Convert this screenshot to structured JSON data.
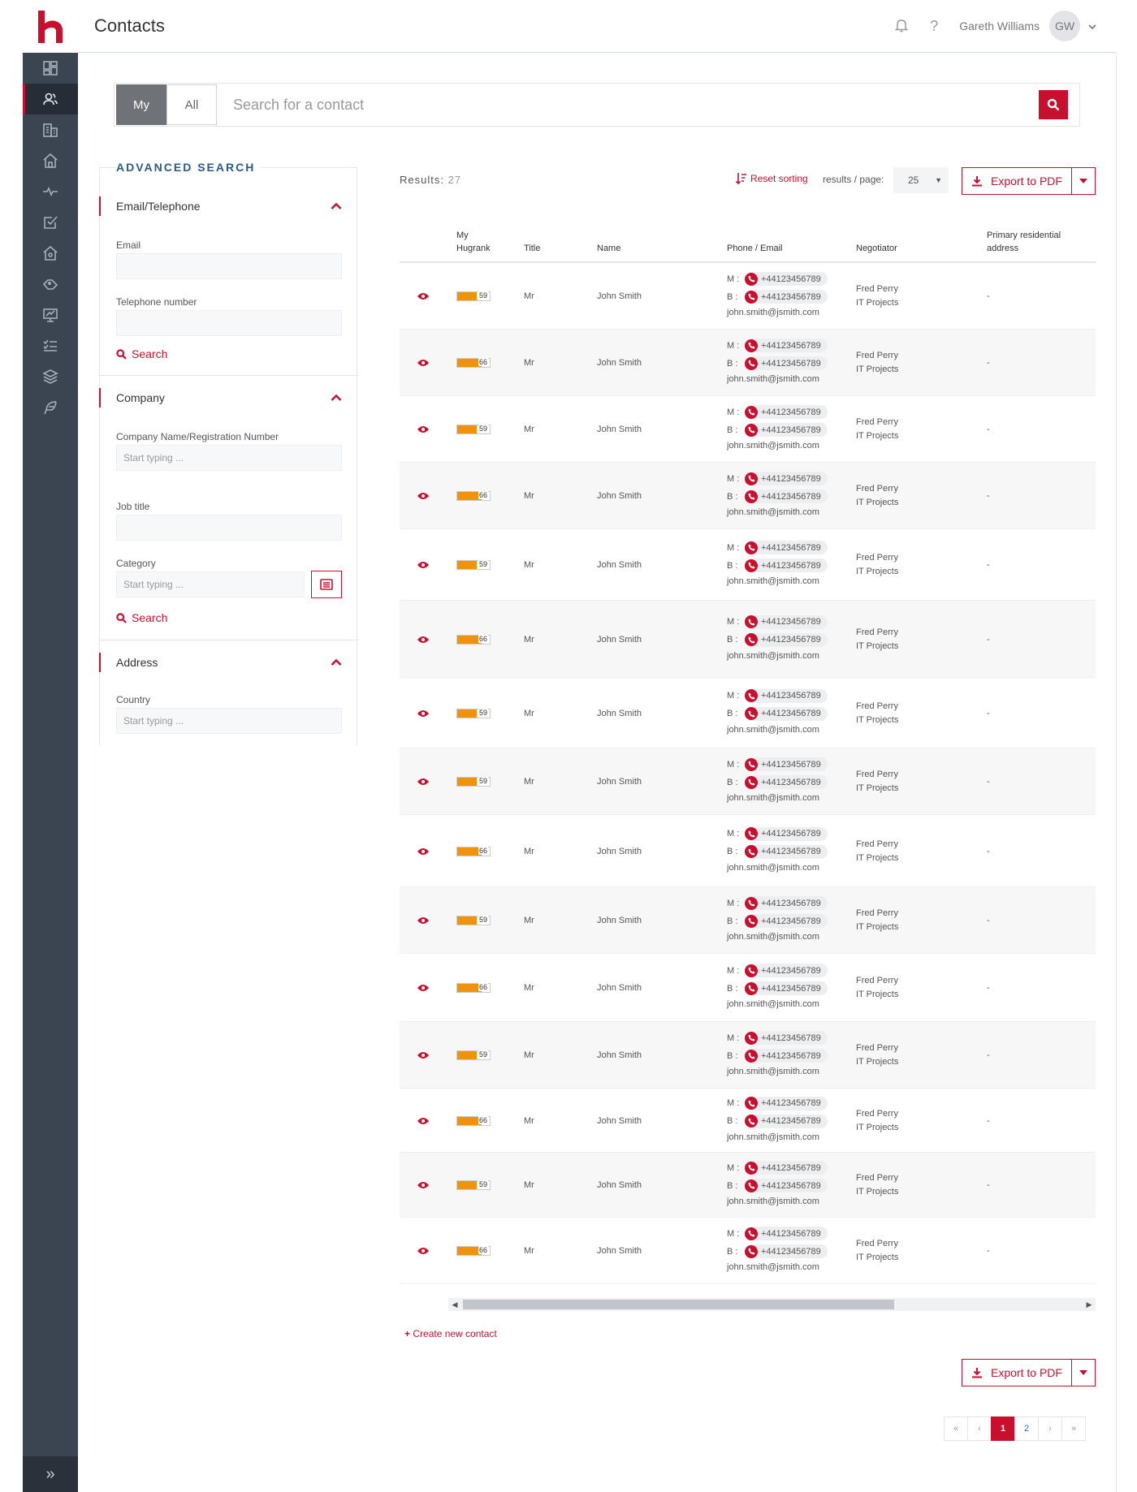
{
  "header": {
    "title": "Contacts",
    "user_name": "Gareth Williams",
    "avatar_initials": "GW",
    "help": "?"
  },
  "sidebar": {
    "items": [
      {
        "name": "dashboard-icon"
      },
      {
        "name": "contacts-icon",
        "active": true
      },
      {
        "name": "companies-icon"
      },
      {
        "name": "properties-icon"
      },
      {
        "name": "activity-icon"
      },
      {
        "name": "tasks-icon"
      },
      {
        "name": "agency-icon"
      },
      {
        "name": "deals-icon"
      },
      {
        "name": "presentation-icon"
      },
      {
        "name": "checklist-icon"
      },
      {
        "name": "layers-icon"
      },
      {
        "name": "feather-icon"
      }
    ],
    "expand": "»"
  },
  "search": {
    "toggle_my": "My",
    "toggle_all": "All",
    "placeholder": "Search for a contact"
  },
  "advanced": {
    "title": "ADVANCED SEARCH",
    "sections": {
      "email_tel": {
        "label": "Email/Telephone",
        "email_label": "Email",
        "email_value": "",
        "tel_label": "Telephone number",
        "tel_value": "",
        "search": "Search"
      },
      "company": {
        "label": "Company",
        "name_label": "Company Name/Registration Number",
        "name_placeholder": "Start typing ...",
        "job_label": "Job title",
        "job_value": "",
        "category_label": "Category",
        "category_placeholder": "Start typing ...",
        "search": "Search"
      },
      "address": {
        "label": "Address",
        "country_label": "Country",
        "country_placeholder": "Start typing ..."
      }
    }
  },
  "results": {
    "label": "Results:",
    "count": "27",
    "reset_sorting": "Reset sorting",
    "per_page_label": "results / page:",
    "per_page_value": "25",
    "export_label": "Export to PDF",
    "create_new": "Create new contact"
  },
  "table": {
    "headers": {
      "hugrank": [
        "My",
        "Hugrank"
      ],
      "title": "Title",
      "name": "Name",
      "phone_email": "Phone / Email",
      "negotiator": "Negotiator",
      "address": [
        "Primary residential",
        "address"
      ]
    },
    "rows": [
      {
        "rank": 59,
        "title": "Mr",
        "name": "John Smith",
        "m_prefix": "M :",
        "mobile": "+44123456789",
        "b_prefix": "B :",
        "business": "+44123456789",
        "email": "john.smith@jsmith.com",
        "negotiator": "Fred Perry",
        "team": "IT Projects",
        "address": "-"
      },
      {
        "rank": 66,
        "title": "Mr",
        "name": "John Smith",
        "m_prefix": "M :",
        "mobile": "+44123456789",
        "b_prefix": "B :",
        "business": "+44123456789",
        "email": "john.smith@jsmith.com",
        "negotiator": "Fred Perry",
        "team": "IT Projects",
        "address": "-"
      },
      {
        "rank": 59,
        "title": "Mr",
        "name": "John Smith",
        "m_prefix": "M :",
        "mobile": "+44123456789",
        "b_prefix": "B :",
        "business": "+44123456789",
        "email": "john.smith@jsmith.com",
        "negotiator": "Fred Perry",
        "team": "IT Projects",
        "address": "-"
      },
      {
        "rank": 66,
        "title": "Mr",
        "name": "John Smith",
        "m_prefix": "M :",
        "mobile": "+44123456789",
        "b_prefix": "B :",
        "business": "+44123456789",
        "email": "john.smith@jsmith.com",
        "negotiator": "Fred Perry",
        "team": "IT Projects",
        "address": "-"
      },
      {
        "rank": 59,
        "title": "Mr",
        "name": "John Smith",
        "m_prefix": "M :",
        "mobile": "+44123456789",
        "b_prefix": "B :",
        "business": "+44123456789",
        "email": "john.smith@jsmith.com",
        "negotiator": "Fred Perry",
        "team": "IT Projects",
        "address": "-"
      },
      {
        "rank": 66,
        "title": "Mr",
        "name": "John Smith",
        "m_prefix": "M :",
        "mobile": "+44123456789",
        "b_prefix": "B :",
        "business": "+44123456789",
        "email": "john.smith@jsmith.com",
        "negotiator": "Fred Perry",
        "team": "IT Projects",
        "address": "-"
      },
      {
        "rank": 59,
        "title": "Mr",
        "name": "John Smith",
        "m_prefix": "M :",
        "mobile": "+44123456789",
        "b_prefix": "B :",
        "business": "+44123456789",
        "email": "john.smith@jsmith.com",
        "negotiator": "Fred Perry",
        "team": "IT Projects",
        "address": "-"
      },
      {
        "rank": 59,
        "title": "Mr",
        "name": "John Smith",
        "m_prefix": "M :",
        "mobile": "+44123456789",
        "b_prefix": "B :",
        "business": "+44123456789",
        "email": "john.smith@jsmith.com",
        "negotiator": "Fred Perry",
        "team": "IT Projects",
        "address": "-"
      },
      {
        "rank": 66,
        "title": "Mr",
        "name": "John Smith",
        "m_prefix": "M :",
        "mobile": "+44123456789",
        "b_prefix": "B :",
        "business": "+44123456789",
        "email": "john.smith@jsmith.com",
        "negotiator": "Fred Perry",
        "team": "IT Projects",
        "address": "-"
      },
      {
        "rank": 59,
        "title": "Mr",
        "name": "John Smith",
        "m_prefix": "M :",
        "mobile": "+44123456789",
        "b_prefix": "B :",
        "business": "+44123456789",
        "email": "john.smith@jsmith.com",
        "negotiator": "Fred Perry",
        "team": "IT Projects",
        "address": "-"
      },
      {
        "rank": 66,
        "title": "Mr",
        "name": "John Smith",
        "m_prefix": "M :",
        "mobile": "+44123456789",
        "b_prefix": "B :",
        "business": "+44123456789",
        "email": "john.smith@jsmith.com",
        "negotiator": "Fred Perry",
        "team": "IT Projects",
        "address": "-"
      },
      {
        "rank": 59,
        "title": "Mr",
        "name": "John Smith",
        "m_prefix": "M :",
        "mobile": "+44123456789",
        "b_prefix": "B :",
        "business": "+44123456789",
        "email": "john.smith@jsmith.com",
        "negotiator": "Fred Perry",
        "team": "IT Projects",
        "address": "-"
      },
      {
        "rank": 66,
        "title": "Mr",
        "name": "John Smith",
        "m_prefix": "M :",
        "mobile": "+44123456789",
        "b_prefix": "B :",
        "business": "+44123456789",
        "email": "john.smith@jsmith.com",
        "negotiator": "Fred Perry",
        "team": "IT Projects",
        "address": "-"
      },
      {
        "rank": 59,
        "title": "Mr",
        "name": "John Smith",
        "m_prefix": "M :",
        "mobile": "+44123456789",
        "b_prefix": "B :",
        "business": "+44123456789",
        "email": "john.smith@jsmith.com",
        "negotiator": "Fred Perry",
        "team": "IT Projects",
        "address": "-"
      },
      {
        "rank": 66,
        "title": "Mr",
        "name": "John Smith",
        "m_prefix": "M :",
        "mobile": "+44123456789",
        "b_prefix": "B :",
        "business": "+44123456789",
        "email": "john.smith@jsmith.com",
        "negotiator": "Fred Perry",
        "team": "IT Projects",
        "address": "-"
      }
    ]
  },
  "pagination": {
    "first": "«",
    "prev": "‹",
    "pages": [
      "1",
      "2"
    ],
    "current": "1",
    "next": "›",
    "last": "»"
  },
  "colors": {
    "accent": "#c8102e",
    "sidebar": "#3b4552",
    "rank_bar": "#f0930a",
    "heading_blue": "#2b5b87"
  }
}
